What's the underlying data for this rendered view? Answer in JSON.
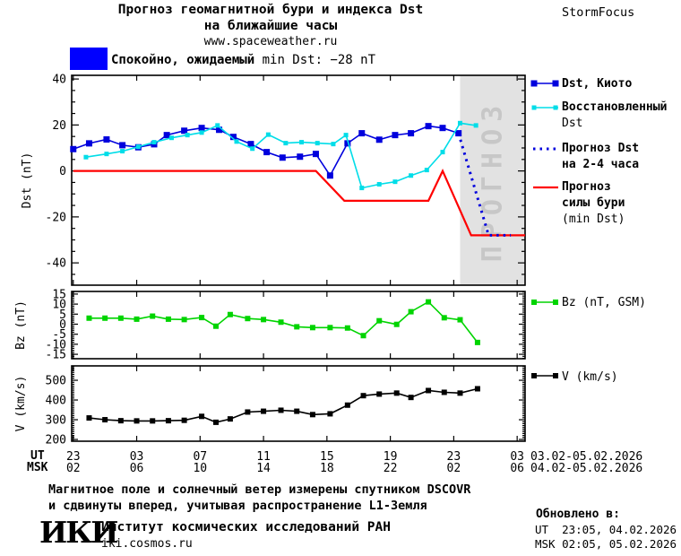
{
  "header": {
    "title_line1": "Прогноз геомагнитной бури и индекса Dst",
    "title_line2": "на ближайшие часы",
    "site": "www.spaceweather.ru",
    "brand": "StormFocus"
  },
  "alert": {
    "status_ru": "Спокойно, ожидаемый",
    "status_en": "min Dst: −28 nT",
    "swatch_color": "#0000ff"
  },
  "legend": {
    "dst_kyoto": "Dst, Киото",
    "restored_line1": "Восстановленный",
    "restored_line2": "Dst",
    "forecast_line1": "Прогноз Dst",
    "forecast_line2": "на 2-4 часа",
    "storm_line1": "Прогноз",
    "storm_line2": "силы бури",
    "storm_line3": "(min Dst)",
    "bz": "Bz (nT, GSM)",
    "v": "V (km/s)"
  },
  "x_axis_headers": {
    "ut": "UT",
    "msk": "MSK"
  },
  "date_ranges": {
    "ut": "03.02-05.02.2026",
    "msk": "04.02-05.02.2026"
  },
  "footer": {
    "note_line1": "Магнитное поле и солнечный ветер измерены спутником DSCOVR",
    "note_line2": "и сдвинуты вперед, учитывая распространение L1-Земля",
    "logo": "ИКИ",
    "institute": "Институт космических исследований РАН",
    "site": "iki.cosmos.ru",
    "updated_label": "Обновлено в:",
    "updated_ut": "UT  23:05, 04.02.2026",
    "updated_msk": "MSK 02:05, 05.02.2026"
  },
  "chart_data": {
    "type": "line",
    "x_axis": {
      "unit": "hour",
      "range": [
        -0.1,
        28.5
      ],
      "tick_hours": [
        0,
        4,
        8,
        12,
        16,
        20,
        24,
        28
      ],
      "ut_labels": [
        "23",
        "03",
        "07",
        "11",
        "15",
        "19",
        "23",
        "03"
      ],
      "msk_labels": [
        "02",
        "06",
        "10",
        "14",
        "18",
        "22",
        "02",
        "06"
      ]
    },
    "panels": [
      {
        "id": "dst",
        "ylabel": "Dst (nT)",
        "ylim": [
          -49.7,
          41.6
        ],
        "yticks": [
          40,
          20,
          0,
          -20,
          -40
        ],
        "forecast_region": [
          24.4,
          28.5
        ],
        "watermark": "ПРОГНОЗ",
        "series": [
          {
            "id": "dst-kyoto",
            "name": "Dst, Киото",
            "color": "#0000dd",
            "marker": 7,
            "width": 1.6,
            "x": [
              0,
              1,
              2.1,
              3.1,
              4.1,
              5.1,
              5.9,
              7,
              8.1,
              9.2,
              10.1,
              11.2,
              12.2,
              13.2,
              14.3,
              15.3,
              16.2,
              17.3,
              18.2,
              19.3,
              20.3,
              21.3,
              22.4,
              23.3,
              24.3
            ],
            "y": [
              9.5,
              12,
              13.7,
              11.2,
              10.3,
              11.6,
              15.6,
              17.5,
              18.7,
              17.9,
              14.8,
              11.7,
              8.2,
              5.8,
              6.2,
              7.4,
              -2,
              12,
              16.4,
              13.6,
              15.6,
              16.4,
              19.5,
              18.7,
              16.4
            ]
          },
          {
            "id": "dst-restored",
            "name": "Восстановленный Dst",
            "color": "#00dde8",
            "marker": 5,
            "width": 1.6,
            "x": [
              0.8,
              2.1,
              3.1,
              4.1,
              5.1,
              6.2,
              7.2,
              8.1,
              9.1,
              10.3,
              11.3,
              12.3,
              13.4,
              14.4,
              15.4,
              16.4,
              17.2,
              18.2,
              19.3,
              20.3,
              21.3,
              22.3,
              23.3,
              24.4,
              25.4
            ],
            "y": [
              6,
              7.4,
              8.6,
              10.5,
              12.5,
              14.4,
              15.6,
              16.7,
              19.8,
              12.8,
              9.7,
              15.8,
              12.1,
              12.5,
              12.1,
              11.7,
              15.6,
              -7.4,
              -5.8,
              -4.7,
              -2,
              0.4,
              8.2,
              20.8,
              19.8
            ]
          },
          {
            "id": "storm-forecast",
            "name": "Прогноз силы бури (min Dst)",
            "color": "#ff0000",
            "width": 2.2,
            "x": [
              0,
              15.3,
              17.1,
              22.4,
              23.3,
              25.1,
              28.5
            ],
            "y": [
              0,
              0,
              -13,
              -13,
              0,
              -28,
              -28
            ]
          },
          {
            "id": "dst-forecast",
            "name": "Прогноз Dst на 2-4 часа",
            "color": "#0000dd",
            "width": 3,
            "dash": "2.5 5",
            "x": [
              24.3,
              26.2,
              27.6
            ],
            "y": [
              16.4,
              -28,
              -28
            ]
          }
        ]
      },
      {
        "id": "bz",
        "ylabel": "Bz (nT)",
        "ylim": [
          -17.2,
          16.3
        ],
        "yticks": [
          15,
          10,
          5,
          0,
          -5,
          -10,
          -15
        ],
        "series": [
          {
            "id": "bz-gsm",
            "name": "Bz (nT, GSM)",
            "color": "#00d400",
            "marker": 6,
            "width": 1.6,
            "x": [
              1,
              2,
              3,
              4,
              5,
              6,
              7,
              8.1,
              9,
              9.9,
              11,
              12,
              13.1,
              14.1,
              15.1,
              16.2,
              17.3,
              18.3,
              19.3,
              20.4,
              21.3,
              22.4,
              23.4,
              24.4,
              25.5
            ],
            "y": [
              3,
              3,
              3,
              2.5,
              4,
              2.5,
              2.3,
              3.3,
              -1,
              4.8,
              2.8,
              2.3,
              1,
              -1.3,
              -1.7,
              -1.7,
              -1.9,
              -5.7,
              1.7,
              -0.1,
              6.2,
              11.1,
              3.2,
              2.2,
              -9.1
            ]
          }
        ]
      },
      {
        "id": "v",
        "ylabel": "V (km/s)",
        "ylim": [
          191,
          573
        ],
        "yticks": [
          500,
          400,
          300,
          200
        ],
        "series": [
          {
            "id": "v-speed",
            "name": "V (km/s)",
            "color": "#000000",
            "marker": 6,
            "width": 1.6,
            "x": [
              1,
              2,
              3,
              4,
              5,
              6,
              7,
              8.1,
              9,
              9.9,
              11,
              12,
              13.1,
              14.1,
              15.1,
              16.2,
              17.3,
              18.3,
              19.3,
              20.4,
              21.3,
              22.4,
              23.4,
              24.4,
              25.5
            ],
            "y": [
              309,
              300,
              295,
              294,
              294,
              295,
              297,
              317,
              287,
              304,
              339,
              343,
              348,
              343,
              326,
              330,
              374,
              422,
              430,
              435,
              413,
              448,
              439,
              435,
              457
            ]
          }
        ]
      }
    ]
  }
}
